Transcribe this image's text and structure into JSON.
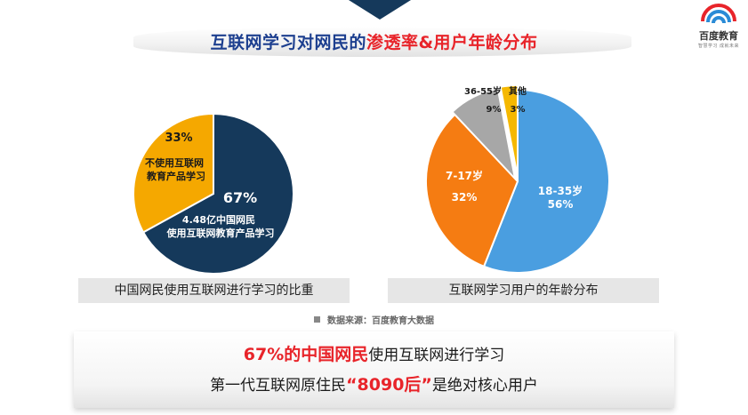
{
  "logo": {
    "name": "百度教育",
    "slogan": "智慧学习 成就未来"
  },
  "title": {
    "part1": "互联网学习对网民的",
    "part2": "渗透率",
    "part3": "&用户年龄分布"
  },
  "chart_data": [
    {
      "type": "pie",
      "caption": "中国网民使用互联网进行学习的比重",
      "slices": [
        {
          "label_lines": [
            "4.48亿中国网民",
            "使用互联网教育产品学习"
          ],
          "value": 67,
          "value_text": "67%",
          "color": "#15395b"
        },
        {
          "label_lines": [
            "不使用互联网",
            "教育产品学习"
          ],
          "value": 33,
          "value_text": "33%",
          "color": "#f5a800"
        }
      ]
    },
    {
      "type": "pie",
      "caption": "互联网学习用户的年龄分布",
      "slices": [
        {
          "label": "18-35岁",
          "value": 56,
          "value_text": "56%",
          "color": "#4a9ee0"
        },
        {
          "label": "7-17岁",
          "value": 32,
          "value_text": "32%",
          "color": "#f57c12"
        },
        {
          "label": "36-55岁",
          "value": 9,
          "value_text": "9%",
          "color": "#a7a7a7"
        },
        {
          "label": "其他",
          "value": 3,
          "value_text": "3%",
          "color": "#f5b800"
        }
      ]
    }
  ],
  "source": "数据来源：百度教育大数据",
  "summary": {
    "line1_highlight": "67%的中国网民",
    "line1_rest": "使用互联网进行学习",
    "line2_pre": "第一代互联网原住民",
    "line2_highlight": "“8090后”",
    "line2_post": "是绝对核心用户"
  }
}
